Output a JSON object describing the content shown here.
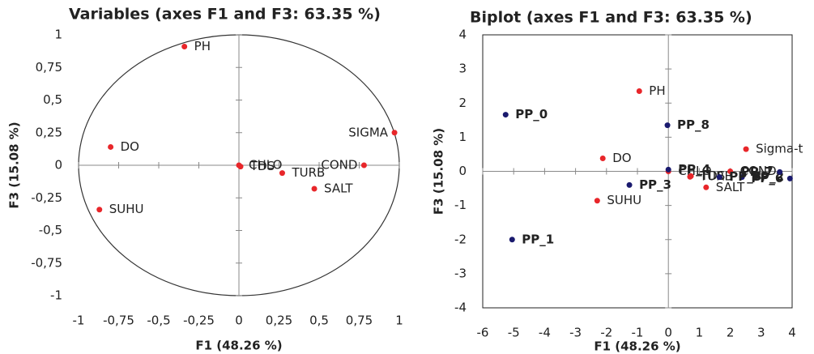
{
  "chart_data": [
    {
      "type": "scatter",
      "title": "Variables (axes F1 and F3: 63.35 %)",
      "x_label": "F1 (48.26 %)",
      "y_label": "F3 (15.08 %)",
      "xlim": [
        -1,
        1
      ],
      "ylim": [
        -1,
        1
      ],
      "xticks": [
        -1,
        {
          "value": -0.75,
          "label": "-0,75"
        },
        {
          "value": -0.5,
          "label": "-0,5"
        },
        {
          "value": -0.25,
          "label": "-0,25"
        },
        0,
        {
          "value": 0.25,
          "label": "0,25"
        },
        {
          "value": 0.5,
          "label": "0,5"
        },
        {
          "value": 0.75,
          "label": "0,75"
        },
        1
      ],
      "yticks": [
        -1,
        {
          "value": -0.75,
          "label": "-0,75"
        },
        {
          "value": -0.5,
          "label": "-0,5"
        },
        {
          "value": -0.25,
          "label": "-0,25"
        },
        0,
        {
          "value": 0.25,
          "label": "0,25"
        },
        {
          "value": 0.5,
          "label": "0,5"
        },
        {
          "value": 0.75,
          "label": "0,75"
        },
        1
      ],
      "circle": true,
      "frame": false,
      "series": [
        {
          "color": "#e8262a",
          "bold": false,
          "labels": [
            "PH",
            "DO",
            "SUHU",
            "CHLO",
            "TDS",
            "TURB",
            "SALT",
            "COND",
            "SIGMA"
          ],
          "x": [
            -0.34,
            -0.8,
            -0.87,
            0.0,
            0.01,
            0.27,
            0.47,
            0.78,
            0.97
          ],
          "values": [
            0.91,
            0.14,
            -0.34,
            0.0,
            -0.01,
            -0.06,
            -0.18,
            0.0,
            0.25
          ]
        }
      ]
    },
    {
      "type": "scatter",
      "title": "Biplot (axes F1 and F3: 63.35 %)",
      "x_label": "F1 (48.26 %)",
      "y_label": "F3 (15.08 %)",
      "xlim": [
        -6,
        4
      ],
      "ylim": [
        -4,
        4
      ],
      "xticks": [
        -6,
        -5,
        -4,
        -3,
        -2,
        -1,
        0,
        1,
        2,
        3,
        4
      ],
      "yticks": [
        -4,
        -3,
        -2,
        -1,
        0,
        1,
        2,
        3,
        4
      ],
      "circle": false,
      "frame": true,
      "series": [
        {
          "color": "#e8262a",
          "bold": false,
          "labels": [
            "PH",
            "DO",
            "SUHU",
            "CHLO",
            "TDS",
            "TURB",
            "SALT",
            "COND",
            "Sigma-t"
          ],
          "x": [
            -0.94,
            -2.12,
            -2.3,
            0.0,
            0.73,
            0.7,
            1.22,
            2.0,
            2.51
          ],
          "values": [
            2.35,
            0.38,
            -0.86,
            0.0,
            -0.14,
            -0.16,
            -0.47,
            0.0,
            0.65
          ]
        },
        {
          "color": "#1a1a6e",
          "bold": true,
          "labels": [
            "PP_0",
            "PP_1",
            "PP_2",
            "PP_3",
            "PP_4",
            "PP_5",
            "PP_6",
            "PP_7",
            "PP_8"
          ],
          "x": [
            -5.26,
            -5.05,
            2.38,
            -1.26,
            0.0,
            1.65,
            3.93,
            3.6,
            -0.03
          ],
          "values": [
            1.66,
            -2.0,
            -0.17,
            -0.4,
            0.05,
            -0.17,
            -0.21,
            -0.02,
            1.35
          ]
        }
      ]
    }
  ]
}
